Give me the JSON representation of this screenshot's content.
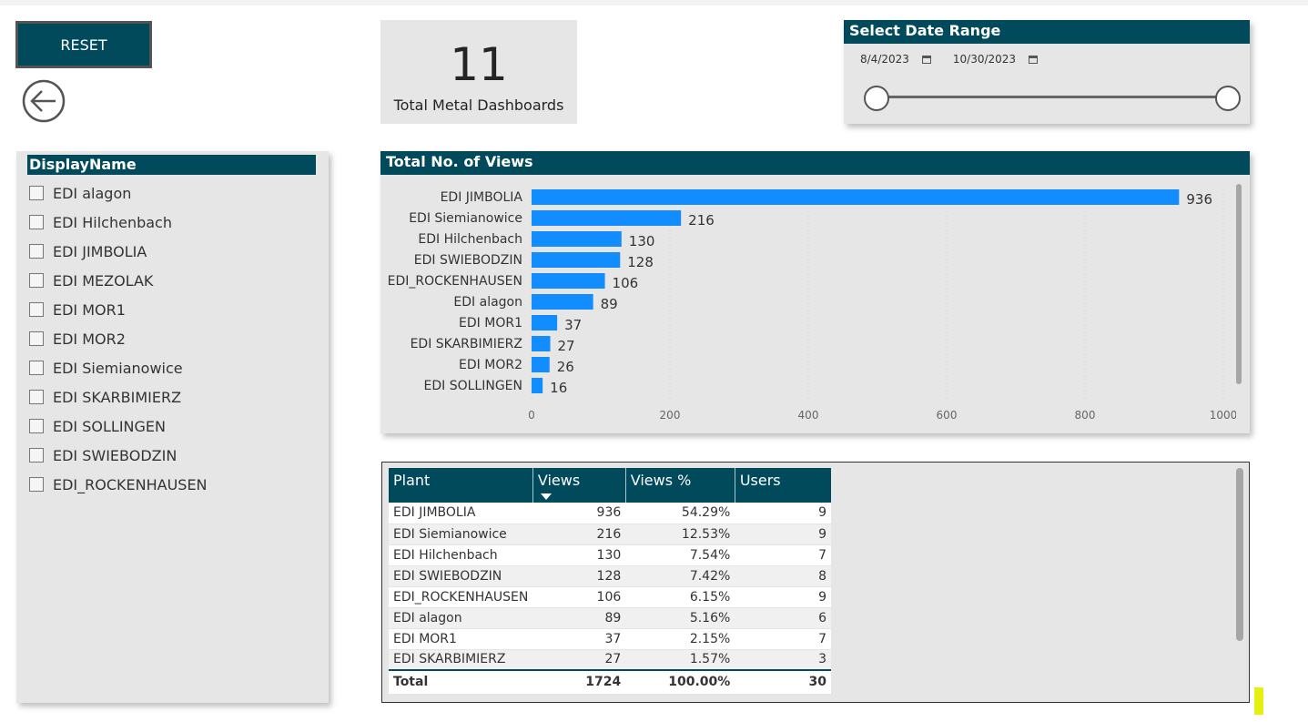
{
  "reset": {
    "label": "RESET"
  },
  "kpi": {
    "value": "11",
    "label": "Total Metal Dashboards"
  },
  "date_range": {
    "title": "Select Date Range",
    "start": "8/4/2023",
    "end": "10/30/2023"
  },
  "slicer": {
    "header": "DisplayName",
    "items": [
      "EDI alagon",
      "EDI Hilchenbach",
      "EDI JIMBOLIA",
      "EDI MEZOLAK",
      "EDI MOR1",
      "EDI MOR2",
      "EDI Siemianowice",
      "EDI SKARBIMIERZ",
      "EDI SOLLINGEN",
      "EDI SWIEBODZIN",
      "EDI_ROCKENHAUSEN"
    ]
  },
  "chart": {
    "title": "Total No. of Views"
  },
  "chart_data": {
    "type": "bar",
    "orientation": "horizontal",
    "title": "Total No. of Views",
    "categories": [
      "EDI JIMBOLIA",
      "EDI Siemianowice",
      "EDI Hilchenbach",
      "EDI SWIEBODZIN",
      "EDI_ROCKENHAUSEN",
      "EDI alagon",
      "EDI MOR1",
      "EDI SKARBIMIERZ",
      "EDI MOR2",
      "EDI SOLLINGEN"
    ],
    "values": [
      936,
      216,
      130,
      128,
      106,
      89,
      37,
      27,
      26,
      16
    ],
    "xlim": [
      0,
      1000
    ],
    "xticks": [
      0,
      200,
      400,
      600,
      800,
      1000
    ],
    "grid": true,
    "bar_color": "#118dff"
  },
  "table": {
    "columns": [
      "Plant",
      "Views",
      "Views %",
      "Users"
    ],
    "rows": [
      [
        "EDI JIMBOLIA",
        "936",
        "54.29%",
        "9"
      ],
      [
        "EDI Siemianowice",
        "216",
        "12.53%",
        "9"
      ],
      [
        "EDI Hilchenbach",
        "130",
        "7.54%",
        "7"
      ],
      [
        "EDI SWIEBODZIN",
        "128",
        "7.42%",
        "8"
      ],
      [
        "EDI_ROCKENHAUSEN",
        "106",
        "6.15%",
        "9"
      ],
      [
        "EDI alagon",
        "89",
        "5.16%",
        "6"
      ],
      [
        "EDI MOR1",
        "37",
        "2.15%",
        "7"
      ],
      [
        "EDI SKARBIMIERZ",
        "27",
        "1.57%",
        "3"
      ]
    ],
    "total": [
      "Total",
      "1724",
      "100.00%",
      "30"
    ]
  },
  "colors": {
    "header": "#004a5c",
    "bar": "#118dff",
    "card": "#e6e6e6"
  }
}
